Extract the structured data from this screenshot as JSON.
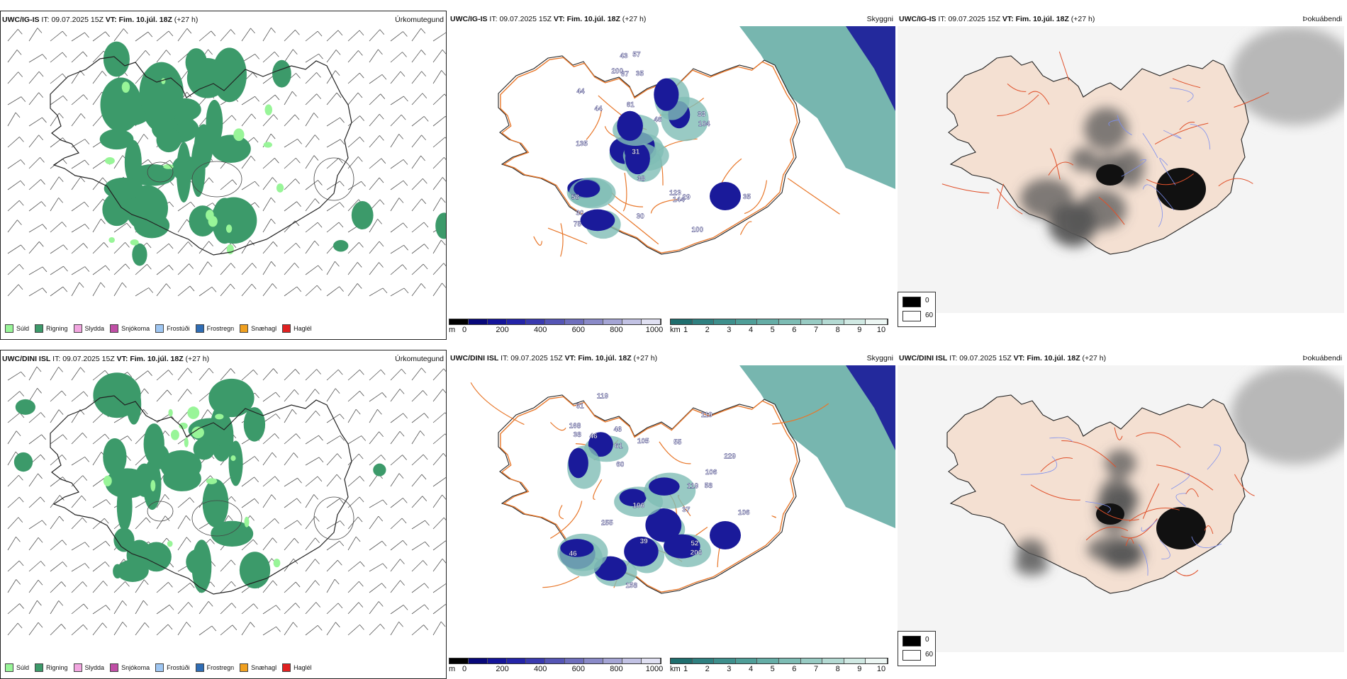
{
  "rows": [
    {
      "model": "UWC/IG-IS",
      "it_label": "IT:",
      "it_value": "09.07.2025 15Z",
      "vt_label": "VT:",
      "vt_value": "Fim. 10.júl. 18Z",
      "lead": "(+27 h)",
      "labels_cloud": [
        "200",
        "135",
        "44",
        "43",
        "44",
        "75",
        "123",
        "30",
        "35",
        "31",
        "38",
        "46",
        "58",
        "57",
        "100",
        "35",
        "61",
        "37",
        "30",
        "29",
        "33",
        "104",
        "144"
      ]
    },
    {
      "model": "UWC/DINI ISL",
      "it_label": "IT:",
      "it_value": "09.07.2025 15Z",
      "vt_label": "VT:",
      "vt_value": "Fim. 10.júl. 18Z",
      "lead": "(+27 h)",
      "labels_cloud": [
        "119",
        "37",
        "119",
        "229",
        "206",
        "158",
        "106",
        "106",
        "55",
        "255",
        "38",
        "46",
        "46",
        "61",
        "119",
        "106",
        "58",
        "60",
        "52",
        "39",
        "61",
        "46",
        "105",
        "168"
      ]
    }
  ],
  "panel_types": {
    "precip": "Úrkomutegund",
    "visibility": "Skyggni",
    "fog": "Þokuábendi"
  },
  "precip_legend": [
    {
      "label": "Súld",
      "color": "#98f598"
    },
    {
      "label": "Rigning",
      "color": "#3c9a6a"
    },
    {
      "label": "Slydda",
      "color": "#f2a6e0"
    },
    {
      "label": "Snjókoma",
      "color": "#c04fa6"
    },
    {
      "label": "Frostúði",
      "color": "#9ec6f2"
    },
    {
      "label": "Frostregn",
      "color": "#2f6db5"
    },
    {
      "label": "Snæhagl",
      "color": "#f0a020"
    },
    {
      "label": "Haglél",
      "color": "#e02020"
    }
  ],
  "cloudbase_bar": {
    "unit": "m",
    "ticks": [
      "0",
      "200",
      "400",
      "600",
      "800",
      "1000"
    ],
    "colors": [
      "#000000",
      "#08087a",
      "#14149a",
      "#2424a8",
      "#3a3aaf",
      "#5555b5",
      "#6f6fbd",
      "#8a8ac8",
      "#a5a5d5",
      "#c2c2e4",
      "#e0e0f2"
    ]
  },
  "visibility_bar": {
    "unit": "km",
    "ticks": [
      "1",
      "2",
      "3",
      "4",
      "5",
      "6",
      "7",
      "8",
      "9",
      "10"
    ],
    "colors": [
      "#1f6e6e",
      "#2f8080",
      "#3e8f8c",
      "#4f9e98",
      "#65ada6",
      "#7dbcb4",
      "#98cbc3",
      "#b4dad3",
      "#d0e9e3",
      "#ecf6f3"
    ]
  },
  "fog_legend": {
    "values": [
      "0",
      "60"
    ]
  },
  "colors": {
    "rain": "#3c9a6a",
    "drizzle": "#98f598",
    "roads": "#e8772a",
    "land_fog": "#f4e0d2",
    "low_cloud": "#1a1a9a"
  }
}
